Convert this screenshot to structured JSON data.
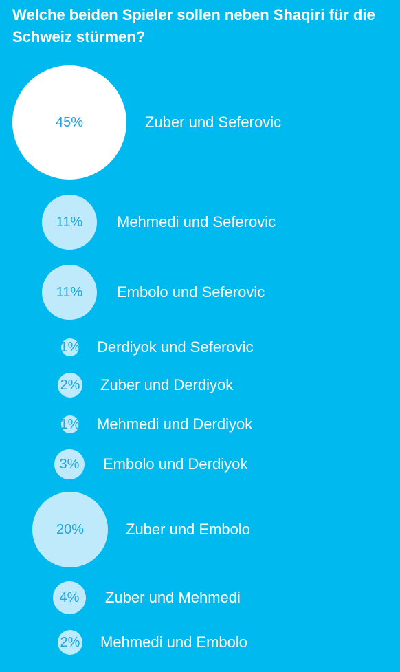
{
  "poll": {
    "question": "Welche beiden Spieler sollen neben Shaqiri für die Schweiz stürmen?",
    "options": [
      {
        "label": "Zuber und Seferovic",
        "percent_label": "45%",
        "percent": 45
      },
      {
        "label": "Mehmedi und Seferovic",
        "percent_label": "11%",
        "percent": 11
      },
      {
        "label": "Embolo und Seferovic",
        "percent_label": "11%",
        "percent": 11
      },
      {
        "label": "Derdiyok und Seferovic",
        "percent_label": "1%",
        "percent": 1
      },
      {
        "label": "Zuber und Derdiyok",
        "percent_label": "2%",
        "percent": 2
      },
      {
        "label": "Mehmedi und Derdiyok",
        "percent_label": "1%",
        "percent": 1
      },
      {
        "label": "Embolo und Derdiyok",
        "percent_label": "3%",
        "percent": 3
      },
      {
        "label": "Zuber und Embolo",
        "percent_label": "20%",
        "percent": 20
      },
      {
        "label": "Zuber und Mehmedi",
        "percent_label": "4%",
        "percent": 4
      },
      {
        "label": "Mehmedi und Embolo",
        "percent_label": "2%",
        "percent": 2
      }
    ]
  },
  "colors": {
    "background": "#00b9ef",
    "lead_bubble": "#ffffff",
    "other_bubble": "#bfeafb",
    "percent_text": "#1ea6d9",
    "label_text": "#ffffff"
  }
}
